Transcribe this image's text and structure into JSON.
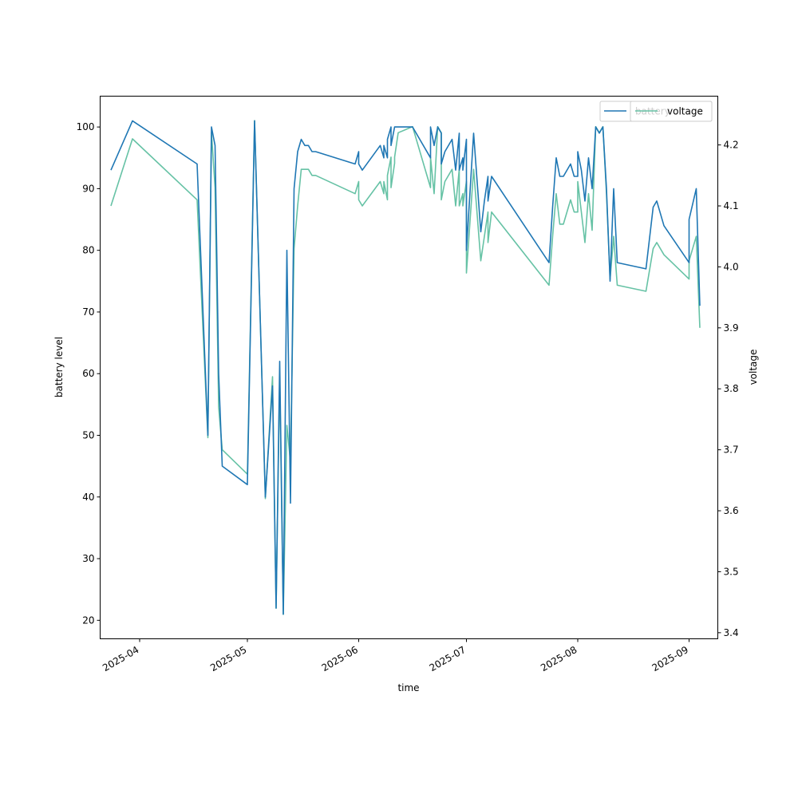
{
  "chart_data": {
    "type": "line",
    "title": "",
    "xlabel": "time",
    "ylabel_left": "battery level",
    "ylabel_right": "voltage",
    "xlim": [
      "2025-03-21",
      "2025-09-09"
    ],
    "ylim_left": [
      17,
      105
    ],
    "ylim_right": [
      3.39,
      4.28
    ],
    "grid": false,
    "legend_placement": "top-right",
    "x_ticks": [
      "2025-04",
      "2025-05",
      "2025-06",
      "2025-07",
      "2025-08",
      "2025-09"
    ],
    "y_ticks_left": [
      20,
      30,
      40,
      50,
      60,
      70,
      80,
      90,
      100
    ],
    "y_ticks_right": [
      "3.4",
      "3.5",
      "3.6",
      "3.7",
      "3.8",
      "3.9",
      "4.0",
      "4.1",
      "4.2"
    ],
    "colors": {
      "battery": "#1f77b4",
      "voltage": "#66c2a5"
    },
    "series": [
      {
        "name": "battery",
        "axis": "left",
        "x": [
          "2025-03-24",
          "2025-03-30",
          "2025-04-17",
          "2025-04-20",
          "2025-04-21",
          "2025-04-22",
          "2025-04-23",
          "2025-04-24",
          "2025-05-01",
          "2025-05-03",
          "2025-05-06",
          "2025-05-08",
          "2025-05-09",
          "2025-05-10",
          "2025-05-11",
          "2025-05-12",
          "2025-05-13",
          "2025-05-14",
          "2025-05-15",
          "2025-05-16",
          "2025-05-17",
          "2025-05-17",
          "2025-05-18",
          "2025-05-19",
          "2025-05-19",
          "2025-05-20",
          "2025-05-20",
          "2025-05-31",
          "2025-06-01",
          "2025-06-01",
          "2025-06-02",
          "2025-06-07",
          "2025-06-08",
          "2025-06-08",
          "2025-06-09",
          "2025-06-09",
          "2025-06-10",
          "2025-06-10",
          "2025-06-11",
          "2025-06-11",
          "2025-06-12",
          "2025-06-16",
          "2025-06-21",
          "2025-06-21",
          "2025-06-22",
          "2025-06-23",
          "2025-06-24",
          "2025-06-24",
          "2025-06-25",
          "2025-06-27",
          "2025-06-28",
          "2025-06-29",
          "2025-06-29",
          "2025-06-30",
          "2025-06-30",
          "2025-07-01",
          "2025-07-01",
          "2025-07-03",
          "2025-07-05",
          "2025-07-06",
          "2025-07-07",
          "2025-07-07",
          "2025-07-08",
          "2025-07-24",
          "2025-07-25",
          "2025-07-26",
          "2025-07-27",
          "2025-07-28",
          "2025-07-30",
          "2025-07-31",
          "2025-08-01",
          "2025-08-01",
          "2025-08-02",
          "2025-08-03",
          "2025-08-04",
          "2025-08-05",
          "2025-08-06",
          "2025-08-07",
          "2025-08-08",
          "2025-08-09",
          "2025-08-10",
          "2025-08-11",
          "2025-08-12",
          "2025-08-20",
          "2025-08-22",
          "2025-08-23",
          "2025-08-25",
          "2025-09-01",
          "2025-09-01",
          "2025-09-03",
          "2025-09-04"
        ],
        "values": [
          93,
          101,
          94,
          50,
          100,
          97,
          60,
          45,
          42,
          101,
          40,
          58,
          22,
          62,
          21,
          80,
          39,
          90,
          96,
          98,
          97,
          97,
          97,
          96,
          96,
          96,
          96,
          94,
          96,
          94,
          93,
          97,
          95,
          97,
          95,
          98,
          100,
          97,
          100,
          100,
          100,
          100,
          95,
          100,
          97,
          100,
          99,
          94,
          96,
          98,
          93,
          99,
          93,
          95,
          93,
          98,
          80,
          99,
          83,
          88,
          92,
          88,
          92,
          78,
          87,
          95,
          92,
          92,
          94,
          92,
          92,
          96,
          93,
          88,
          95,
          90,
          100,
          99,
          100,
          90,
          75,
          90,
          78,
          77,
          87,
          88,
          84,
          78,
          85,
          90,
          71
        ]
      },
      {
        "name": "voltage",
        "axis": "right",
        "x": [
          "2025-03-24",
          "2025-03-30",
          "2025-04-17",
          "2025-04-20",
          "2025-04-21",
          "2025-04-22",
          "2025-04-23",
          "2025-04-24",
          "2025-05-01",
          "2025-05-03",
          "2025-05-06",
          "2025-05-08",
          "2025-05-09",
          "2025-05-10",
          "2025-05-11",
          "2025-05-12",
          "2025-05-13",
          "2025-05-14",
          "2025-05-15",
          "2025-05-16",
          "2025-05-17",
          "2025-05-17",
          "2025-05-18",
          "2025-05-19",
          "2025-05-19",
          "2025-05-20",
          "2025-05-20",
          "2025-05-31",
          "2025-06-01",
          "2025-06-01",
          "2025-06-02",
          "2025-06-07",
          "2025-06-08",
          "2025-06-08",
          "2025-06-09",
          "2025-06-09",
          "2025-06-10",
          "2025-06-10",
          "2025-06-11",
          "2025-06-11",
          "2025-06-12",
          "2025-06-16",
          "2025-06-21",
          "2025-06-21",
          "2025-06-22",
          "2025-06-23",
          "2025-06-24",
          "2025-06-24",
          "2025-06-25",
          "2025-06-27",
          "2025-06-28",
          "2025-06-29",
          "2025-06-29",
          "2025-06-30",
          "2025-06-30",
          "2025-07-01",
          "2025-07-01",
          "2025-07-03",
          "2025-07-05",
          "2025-07-06",
          "2025-07-07",
          "2025-07-07",
          "2025-07-08",
          "2025-07-24",
          "2025-07-25",
          "2025-07-26",
          "2025-07-27",
          "2025-07-28",
          "2025-07-30",
          "2025-07-31",
          "2025-08-01",
          "2025-08-01",
          "2025-08-02",
          "2025-08-03",
          "2025-08-04",
          "2025-08-05",
          "2025-08-06",
          "2025-08-07",
          "2025-08-08",
          "2025-08-09",
          "2025-08-10",
          "2025-08-11",
          "2025-08-12",
          "2025-08-20",
          "2025-08-22",
          "2025-08-23",
          "2025-08-25",
          "2025-09-01",
          "2025-09-01",
          "2025-09-03",
          "2025-09-04"
        ],
        "values": [
          4.1,
          4.21,
          4.11,
          3.72,
          4.22,
          4.13,
          3.77,
          3.7,
          3.66,
          4.24,
          3.62,
          3.82,
          3.44,
          3.82,
          3.43,
          3.74,
          3.68,
          4.03,
          4.1,
          4.16,
          4.16,
          4.16,
          4.16,
          4.15,
          4.15,
          4.15,
          4.15,
          4.12,
          4.14,
          4.11,
          4.1,
          4.14,
          4.12,
          4.14,
          4.11,
          4.15,
          4.18,
          4.13,
          4.17,
          4.18,
          4.22,
          4.23,
          4.13,
          4.18,
          4.12,
          4.23,
          4.22,
          4.11,
          4.14,
          4.16,
          4.1,
          4.16,
          4.1,
          4.12,
          4.1,
          4.14,
          3.99,
          4.16,
          4.01,
          4.05,
          4.09,
          4.04,
          4.09,
          3.97,
          4.05,
          4.12,
          4.07,
          4.07,
          4.11,
          4.09,
          4.09,
          4.14,
          4.09,
          4.04,
          4.12,
          4.06,
          4.23,
          4.22,
          4.23,
          4.12,
          3.98,
          4.05,
          3.97,
          3.96,
          4.03,
          4.04,
          4.02,
          3.98,
          4.01,
          4.05,
          3.9
        ]
      }
    ],
    "legend": [
      {
        "label": "battery",
        "series": "battery"
      },
      {
        "label": "voltage",
        "series": "voltage"
      }
    ]
  }
}
